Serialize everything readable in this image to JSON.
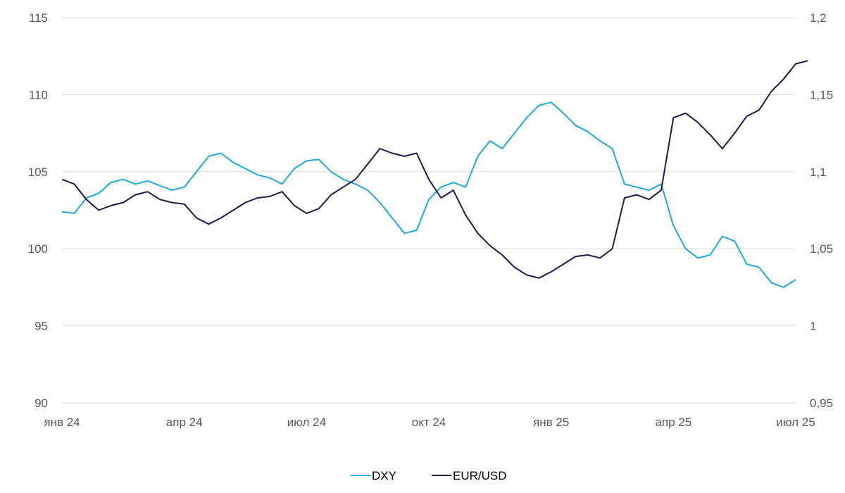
{
  "chart_data": {
    "type": "line",
    "title": "",
    "xlabel": "",
    "ylabel": "",
    "x_ticks": [
      "янв 24",
      "апр 24",
      "июл 24",
      "окт 24",
      "янв 25",
      "апр 25",
      "июл 25"
    ],
    "y_left": {
      "min": 90,
      "max": 115,
      "ticks": [
        "90",
        "95",
        "100",
        "105",
        "110",
        "115"
      ]
    },
    "y_right": {
      "min": 0.95,
      "max": 1.2,
      "ticks": [
        "0,95",
        "1",
        "1,05",
        "1,1",
        "1,15",
        "1,2"
      ]
    },
    "grid": true,
    "legend_position": "bottom",
    "series": [
      {
        "name": "DXY",
        "axis": "left",
        "color": "#1fa7e0",
        "points": [
          [
            "янв 24",
            102.4
          ],
          [
            "",
            102.3
          ],
          [
            "",
            103.3
          ],
          [
            "",
            103.6
          ],
          [
            "",
            104.3
          ],
          [
            "",
            104.5
          ],
          [
            "",
            104.2
          ],
          [
            "",
            104.4
          ],
          [
            "",
            104.1
          ],
          [
            "",
            103.8
          ],
          [
            "апр 24",
            104.0
          ],
          [
            "",
            105.0
          ],
          [
            "",
            106.0
          ],
          [
            "",
            106.2
          ],
          [
            "",
            105.6
          ],
          [
            "",
            105.2
          ],
          [
            "",
            104.8
          ],
          [
            "",
            104.6
          ],
          [
            "",
            104.2
          ],
          [
            "",
            105.2
          ],
          [
            "июл 24",
            105.7
          ],
          [
            "",
            105.8
          ],
          [
            "",
            105.0
          ],
          [
            "",
            104.5
          ],
          [
            "",
            104.2
          ],
          [
            "",
            103.8
          ],
          [
            "",
            103.0
          ],
          [
            "",
            102.0
          ],
          [
            "",
            101.0
          ],
          [
            "",
            101.2
          ],
          [
            "окт 24",
            103.2
          ],
          [
            "",
            104.0
          ],
          [
            "",
            104.3
          ],
          [
            "",
            104.0
          ],
          [
            "",
            106.0
          ],
          [
            "",
            107.0
          ],
          [
            "",
            106.5
          ],
          [
            "",
            107.5
          ],
          [
            "",
            108.5
          ],
          [
            "",
            109.3
          ],
          [
            "янв 25",
            109.5
          ],
          [
            "",
            108.8
          ],
          [
            "",
            108.0
          ],
          [
            "",
            107.6
          ],
          [
            "",
            107.0
          ],
          [
            "",
            106.5
          ],
          [
            "",
            104.2
          ],
          [
            "",
            104.0
          ],
          [
            "",
            103.8
          ],
          [
            "",
            104.2
          ],
          [
            "апр 25",
            101.5
          ],
          [
            "",
            100.0
          ],
          [
            "",
            99.4
          ],
          [
            "",
            99.6
          ],
          [
            "",
            100.8
          ],
          [
            "",
            100.5
          ],
          [
            "",
            99.0
          ],
          [
            "",
            98.8
          ],
          [
            "",
            97.8
          ],
          [
            "",
            97.5
          ],
          [
            "июл 25",
            98.0
          ]
        ]
      },
      {
        "name": "EUR/USD",
        "axis": "right",
        "color": "#1b1a4b",
        "points": [
          [
            "янв 24",
            1.095
          ],
          [
            "",
            1.092
          ],
          [
            "",
            1.082
          ],
          [
            "",
            1.075
          ],
          [
            "",
            1.078
          ],
          [
            "",
            1.08
          ],
          [
            "",
            1.085
          ],
          [
            "",
            1.087
          ],
          [
            "",
            1.082
          ],
          [
            "",
            1.08
          ],
          [
            "апр 24",
            1.079
          ],
          [
            "",
            1.07
          ],
          [
            "",
            1.066
          ],
          [
            "",
            1.07
          ],
          [
            "",
            1.075
          ],
          [
            "",
            1.08
          ],
          [
            "",
            1.083
          ],
          [
            "",
            1.084
          ],
          [
            "",
            1.087
          ],
          [
            "",
            1.078
          ],
          [
            "июл 24",
            1.073
          ],
          [
            "",
            1.076
          ],
          [
            "",
            1.085
          ],
          [
            "",
            1.09
          ],
          [
            "",
            1.095
          ],
          [
            "",
            1.105
          ],
          [
            "",
            1.115
          ],
          [
            "",
            1.112
          ],
          [
            "",
            1.11
          ],
          [
            "",
            1.112
          ],
          [
            "окт 24",
            1.095
          ],
          [
            "",
            1.083
          ],
          [
            "",
            1.088
          ],
          [
            "",
            1.072
          ],
          [
            "",
            1.06
          ],
          [
            "",
            1.052
          ],
          [
            "",
            1.046
          ],
          [
            "",
            1.038
          ],
          [
            "",
            1.033
          ],
          [
            "",
            1.031
          ],
          [
            "янв 25",
            1.035
          ],
          [
            "",
            1.04
          ],
          [
            "",
            1.045
          ],
          [
            "",
            1.046
          ],
          [
            "",
            1.044
          ],
          [
            "",
            1.05
          ],
          [
            "",
            1.083
          ],
          [
            "",
            1.085
          ],
          [
            "",
            1.082
          ],
          [
            "",
            1.088
          ],
          [
            "апр 25",
            1.135
          ],
          [
            "",
            1.138
          ],
          [
            "",
            1.132
          ],
          [
            "",
            1.124
          ],
          [
            "",
            1.115
          ],
          [
            "",
            1.125
          ],
          [
            "",
            1.136
          ],
          [
            "",
            1.14
          ],
          [
            "",
            1.152
          ],
          [
            "",
            1.16
          ],
          [
            "июл 25",
            1.17
          ],
          [
            "",
            1.172
          ]
        ]
      }
    ]
  }
}
